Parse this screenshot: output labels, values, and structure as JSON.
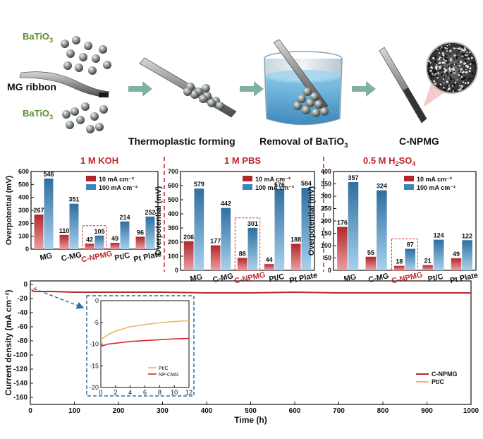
{
  "schematic": {
    "batio3_top": "BaTiO",
    "batio3_top_sub": "3",
    "batio3_bottom": "BaTiO",
    "batio3_bottom_sub": "3",
    "mg_ribbon": "MG ribbon",
    "step1": "Thermoplastic forming",
    "step2_a": "Removal of BaTiO",
    "step2_sub": "3",
    "step3": "C-NPMG"
  },
  "colors": {
    "c10": "#c0272d",
    "c100": "#3a86bd",
    "green_text": "#5e8c31",
    "title_red": "#c0272d",
    "arrow": "#6aa58e",
    "long_cnpmg": "#b22a2e",
    "long_ptc": "#f2b36b"
  },
  "chart_data": [
    {
      "type": "bar",
      "title": "1 M KOH",
      "ylabel": "Overpotential (mV)",
      "ylim": [
        0,
        600
      ],
      "yticks": [
        "0",
        "100",
        "200",
        "300",
        "400",
        "500",
        "600"
      ],
      "categories": [
        "MG",
        "C-MG",
        "C-NPMG",
        "Pt/C",
        "Pt Plate"
      ],
      "highlight": "C-NPMG",
      "series": [
        {
          "name": "10 mA cm⁻²",
          "values": [
            267,
            110,
            42,
            49,
            96
          ],
          "labels": [
            "267",
            "110",
            "42",
            "49",
            "96"
          ]
        },
        {
          "name": "100 mA cm⁻²",
          "values": [
            546,
            351,
            105,
            214,
            252
          ],
          "labels": [
            "546",
            "351",
            "105",
            "214",
            "252"
          ]
        }
      ]
    },
    {
      "type": "bar",
      "title": "1 M PBS",
      "ylabel": "Overpotential (mV)",
      "ylim": [
        0,
        700
      ],
      "yticks": [
        "0",
        "100",
        "200",
        "300",
        "400",
        "500",
        "600",
        "700"
      ],
      "categories": [
        "MG",
        "C-MG",
        "C-NPMG",
        "Pt/C",
        "Pt Plate"
      ],
      "highlight": "C-NPMG",
      "series": [
        {
          "name": "10 mA cm⁻²",
          "values": [
            206,
            177,
            88,
            44,
            188
          ],
          "labels": [
            "206",
            "177",
            "88",
            "44",
            "188"
          ]
        },
        {
          "name": "100 mA cm⁻²",
          "values": [
            579,
            442,
            301,
            576,
            584
          ],
          "labels": [
            "579",
            "442",
            "301",
            "576",
            "584"
          ]
        }
      ]
    },
    {
      "type": "bar",
      "title_prefix": "0.5 M H",
      "title_sub": "2",
      "title_suffix": "SO",
      "title_sub2": "4",
      "ylabel": "Overpotential (mV)",
      "ylim": [
        0,
        400
      ],
      "yticks": [
        "0",
        "50",
        "100",
        "150",
        "200",
        "250",
        "300",
        "350",
        "400"
      ],
      "categories": [
        "MG",
        "C-MG",
        "C-NPMG",
        "Pt/C",
        "Pt Plate"
      ],
      "highlight": "C-NPMG",
      "series": [
        {
          "name": "10 mA cm⁻²",
          "values": [
            176,
            55,
            18,
            21,
            49
          ],
          "labels": [
            "176",
            "55",
            "18",
            "21",
            "49"
          ]
        },
        {
          "name": "100 mA cm⁻²",
          "values": [
            357,
            324,
            87,
            124,
            122
          ],
          "labels": [
            "357",
            "324",
            "87",
            "124",
            "122"
          ]
        }
      ]
    },
    {
      "type": "line",
      "xlabel": "Time (h)",
      "ylabel": "Current density (mA cm⁻²)",
      "xlim": [
        0,
        1000
      ],
      "ylim": [
        -170,
        5
      ],
      "xticks": [
        "0",
        "100",
        "200",
        "300",
        "400",
        "500",
        "600",
        "700",
        "800",
        "900",
        "1000"
      ],
      "yticks": [
        "0",
        "-20",
        "-40",
        "-60",
        "-80",
        "-100",
        "-120",
        "-140",
        "-160"
      ],
      "series": [
        {
          "name": "C-NPMG",
          "x": [
            0,
            5,
            10,
            20,
            50,
            100,
            200,
            300,
            400,
            500,
            600,
            700,
            800,
            900,
            1000
          ],
          "y": [
            -8,
            -9,
            -10,
            -10,
            -10,
            -11,
            -11,
            -11,
            -12,
            -12,
            -11,
            -12,
            -12,
            -12,
            -12
          ]
        },
        {
          "name": "Pt/C",
          "x": [
            0,
            5,
            10,
            15
          ],
          "y": [
            -10,
            -7,
            -5,
            -4
          ]
        }
      ]
    },
    {
      "type": "line",
      "xlim": [
        0,
        12
      ],
      "ylim": [
        -20,
        0
      ],
      "xticks": [
        "0",
        "2",
        "4",
        "6",
        "8",
        "10",
        "12"
      ],
      "yticks": [
        "0",
        "-5",
        "-10",
        "-15",
        "-20"
      ],
      "series": [
        {
          "name": "Pt/C",
          "x": [
            0,
            1,
            2,
            3,
            4,
            6,
            8,
            10,
            12
          ],
          "y": [
            -9,
            -7.8,
            -7,
            -6.5,
            -6,
            -5.5,
            -5.1,
            -4.8,
            -4.6
          ]
        },
        {
          "name": "NP-CMG",
          "x": [
            0,
            1,
            2,
            3,
            4,
            6,
            8,
            10,
            12
          ],
          "y": [
            -10.5,
            -10,
            -9.8,
            -9.6,
            -9.4,
            -9.2,
            -9,
            -8.8,
            -8.7
          ]
        }
      ]
    }
  ]
}
